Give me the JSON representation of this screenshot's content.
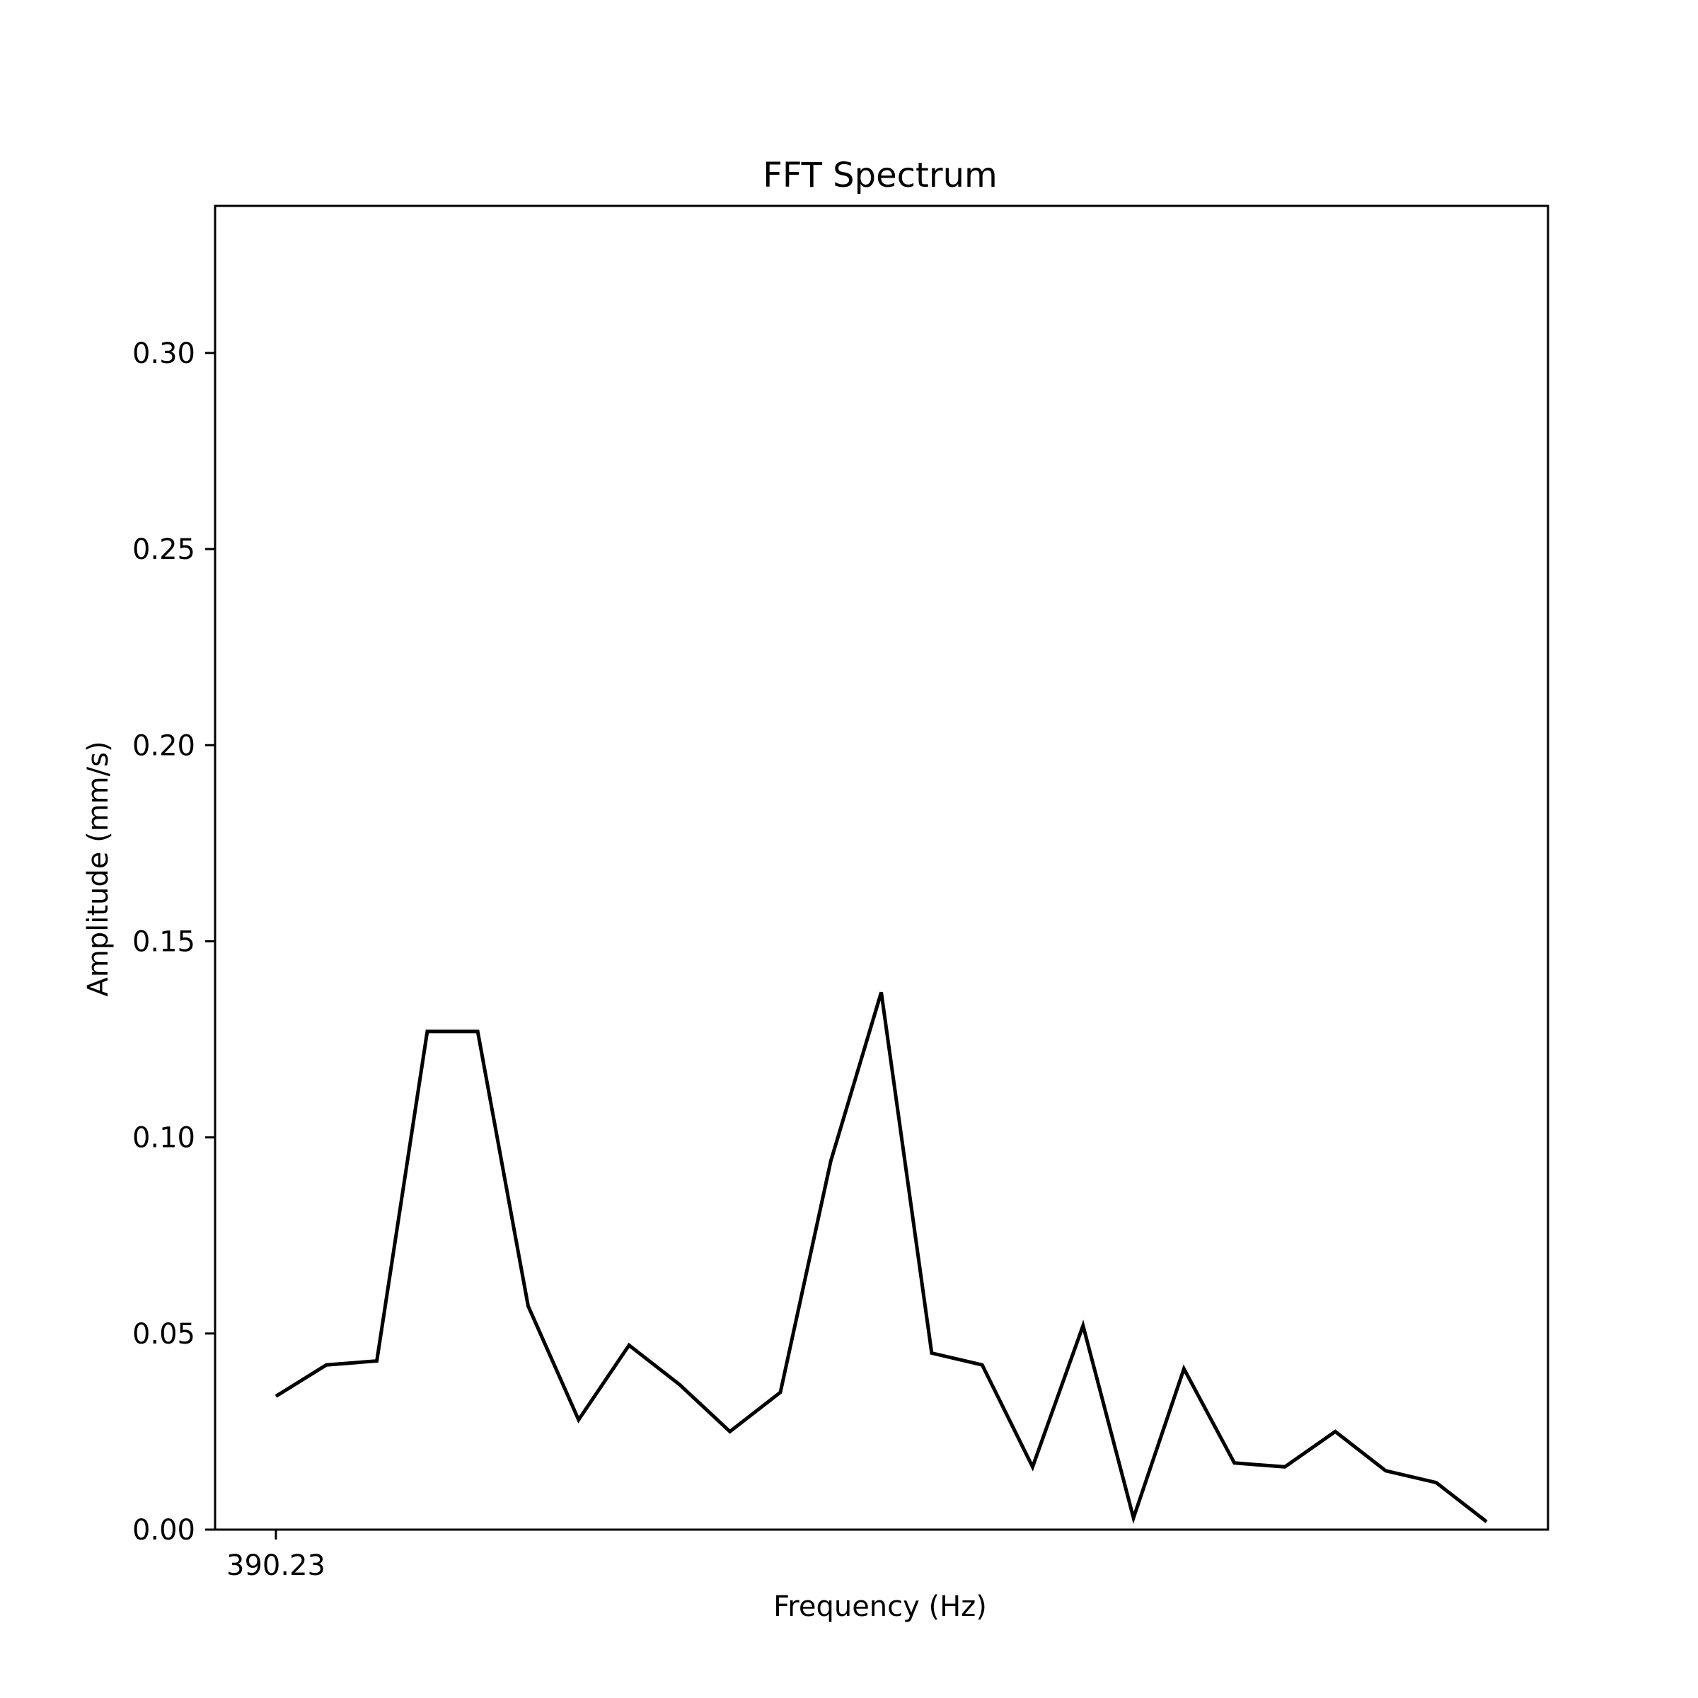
{
  "chart_data": {
    "type": "line",
    "title": "FFT Spectrum",
    "xlabel": "Frequency (Hz)",
    "ylabel": "Amplitude (mm/s)",
    "x_tick_labels": [
      "390.23"
    ],
    "y_ticks": [
      0.0,
      0.05,
      0.1,
      0.15,
      0.2,
      0.25,
      0.3
    ],
    "y_tick_labels": [
      "0.00",
      "0.05",
      "0.10",
      "0.15",
      "0.20",
      "0.25",
      "0.30"
    ],
    "ylim": [
      0,
      0.3375
    ],
    "grid": false,
    "line_color": "#000000",
    "series": [
      {
        "values": [
          0.034,
          0.042,
          0.043,
          0.127,
          0.127,
          0.057,
          0.028,
          0.047,
          0.037,
          0.025,
          0.035,
          0.094,
          0.137,
          0.045,
          0.042,
          0.016,
          0.052,
          0.003,
          0.041,
          0.017,
          0.016,
          0.025,
          0.015,
          0.012,
          0.002
        ]
      }
    ]
  }
}
